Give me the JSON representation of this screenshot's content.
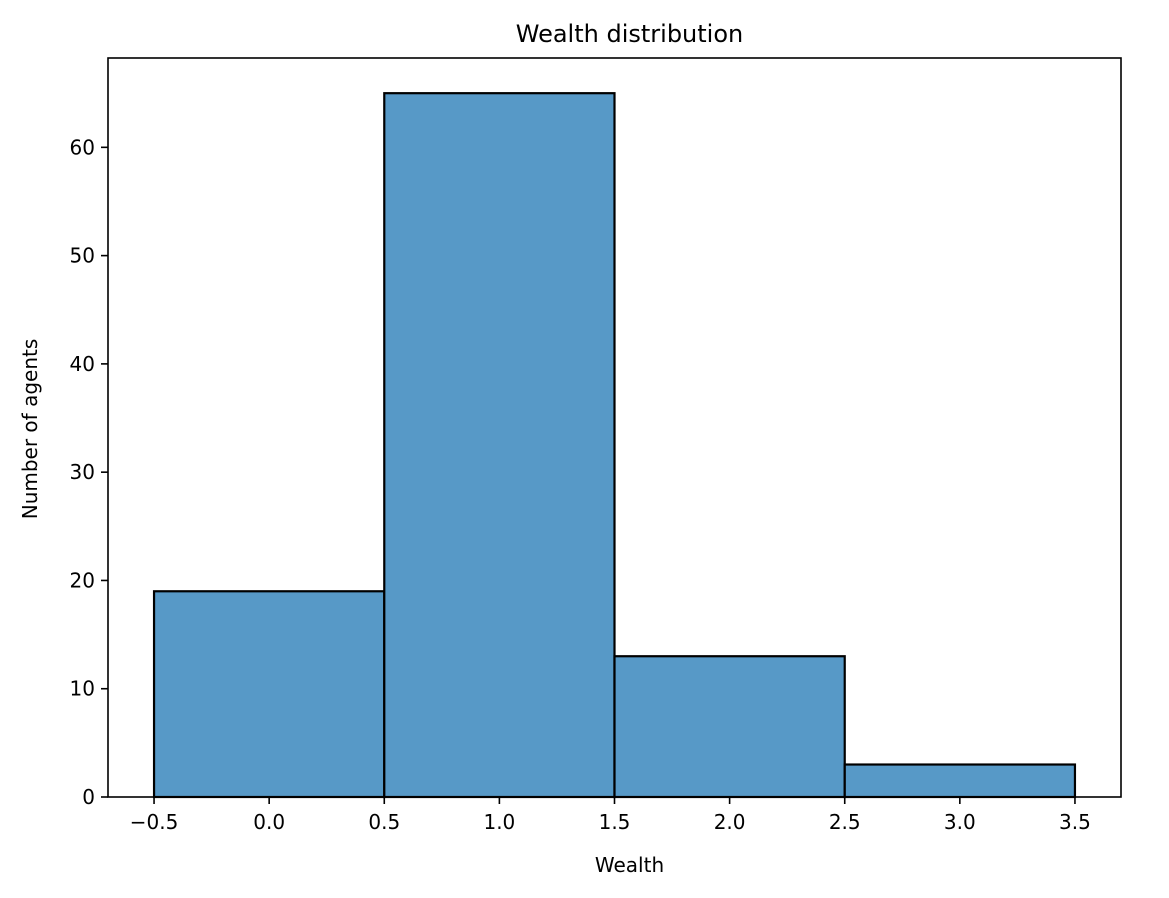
{
  "chart_data": {
    "type": "bar",
    "title": "Wealth distribution",
    "xlabel": "Wealth",
    "ylabel": "Number of agents",
    "bins": [
      {
        "left": -0.5,
        "right": 0.5,
        "value": 19
      },
      {
        "left": 0.5,
        "right": 1.5,
        "value": 65
      },
      {
        "left": 1.5,
        "right": 2.5,
        "value": 13
      },
      {
        "left": 2.5,
        "right": 3.5,
        "value": 3
      }
    ],
    "xlim": [
      -0.7,
      3.7
    ],
    "ylim": [
      0,
      68.25
    ],
    "xticks": [
      -0.5,
      0.0,
      0.5,
      1.0,
      1.5,
      2.0,
      2.5,
      3.0,
      3.5
    ],
    "xtick_labels": [
      "−0.5",
      "0.0",
      "0.5",
      "1.0",
      "1.5",
      "2.0",
      "2.5",
      "3.0",
      "3.5"
    ],
    "yticks": [
      0,
      10,
      20,
      30,
      40,
      50,
      60
    ],
    "ytick_labels": [
      "0",
      "10",
      "20",
      "30",
      "40",
      "50",
      "60"
    ],
    "bar_color": "#5799c7",
    "edge_color": "#000000",
    "grid": false,
    "legend": "none"
  }
}
